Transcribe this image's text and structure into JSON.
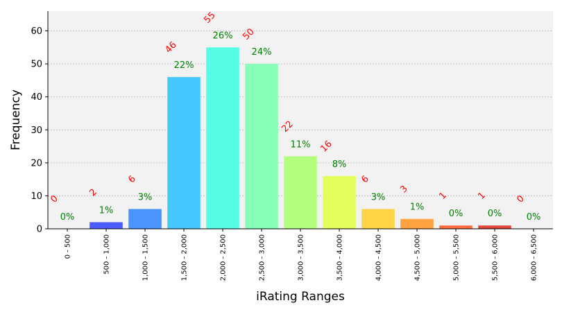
{
  "chart_data": {
    "type": "bar",
    "title": "",
    "xlabel": "iRating Ranges",
    "ylabel": "Frequency",
    "ylim": [
      0,
      66
    ],
    "yticks": [
      0,
      10,
      20,
      30,
      40,
      50,
      60
    ],
    "grid": true,
    "categories": [
      "0 - 500",
      "500 - 1,000",
      "1,000 - 1,500",
      "1,500 - 2,000",
      "2,000 - 2,500",
      "2,500 - 3,000",
      "3,000 - 3,500",
      "3,500 - 4,000",
      "4,000 - 4,500",
      "4,500 - 5,000",
      "5,000 - 5,500",
      "5,500 - 6,000",
      "6,000 - 6,500"
    ],
    "values": [
      0,
      2,
      6,
      46,
      55,
      50,
      22,
      16,
      6,
      3,
      1,
      1,
      0
    ],
    "count_labels": [
      "0",
      "2",
      "6",
      "46",
      "55",
      "50",
      "22",
      "16",
      "6",
      "3",
      "1",
      "1",
      "0"
    ],
    "percent_labels": [
      "0%",
      "1%",
      "3%",
      "22%",
      "26%",
      "24%",
      "11%",
      "8%",
      "3%",
      "1%",
      "0%",
      "0%",
      "0%"
    ],
    "colors": [
      "#3b2fff",
      "#4b5cff",
      "#4a94ff",
      "#45c8ff",
      "#57fde5",
      "#87ffb9",
      "#b5ff7f",
      "#e2fd5c",
      "#ffd447",
      "#ffa340",
      "#ff6b3c",
      "#e1443b",
      "#b71a1a"
    ],
    "count_color": "#ff0000",
    "percent_color": "#008000",
    "plot_background": "#f2f2f2"
  }
}
